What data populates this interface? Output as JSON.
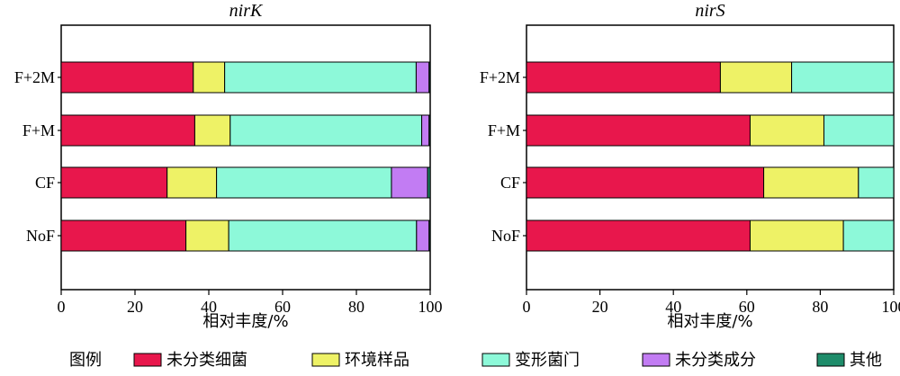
{
  "legend": {
    "title": "图例",
    "items": [
      {
        "name": "未分类细菌",
        "color": "#E8174C"
      },
      {
        "name": "环境样品",
        "color": "#EEF266"
      },
      {
        "name": "变形菌门",
        "color": "#8DF9D9"
      },
      {
        "name": "未分类成分",
        "color": "#C27CF3"
      },
      {
        "name": "其他",
        "color": "#1E8C6A"
      }
    ]
  },
  "chart_data": [
    {
      "type": "bar",
      "orientation": "horizontal",
      "stacked": true,
      "title": "nirK",
      "xlabel": "相对丰度/%",
      "ylabel": "",
      "xlim": [
        0,
        100
      ],
      "xticks": [
        "0",
        "20",
        "40",
        "60",
        "80",
        "100"
      ],
      "categories": [
        "F+2M",
        "F+M",
        "CF",
        "NoF"
      ],
      "series": [
        {
          "name": "未分类细菌",
          "values": [
            35.8,
            36.2,
            28.7,
            33.8
          ]
        },
        {
          "name": "环境样品",
          "values": [
            8.5,
            9.6,
            13.4,
            11.6
          ]
        },
        {
          "name": "变形菌门",
          "values": [
            51.9,
            51.9,
            47.4,
            50.9
          ]
        },
        {
          "name": "未分类成分",
          "values": [
            3.5,
            2.0,
            9.8,
            3.4
          ]
        },
        {
          "name": "其他",
          "values": [
            0.3,
            0.3,
            0.7,
            0.3
          ]
        }
      ]
    },
    {
      "type": "bar",
      "orientation": "horizontal",
      "stacked": true,
      "title": "nirS",
      "xlabel": "相对丰度/%",
      "ylabel": "",
      "xlim": [
        0,
        100
      ],
      "xticks": [
        "0",
        "20",
        "40",
        "60",
        "80",
        "100"
      ],
      "categories": [
        "F+2M",
        "F+M",
        "CF",
        "NoF"
      ],
      "series": [
        {
          "name": "未分类细菌",
          "values": [
            52.8,
            60.9,
            64.6,
            60.9
          ]
        },
        {
          "name": "环境样品",
          "values": [
            19.4,
            20.1,
            25.8,
            25.4
          ]
        },
        {
          "name": "变形菌门",
          "values": [
            27.8,
            19.0,
            9.6,
            13.7
          ]
        },
        {
          "name": "未分类成分",
          "values": [
            0,
            0,
            0,
            0
          ]
        },
        {
          "name": "其他",
          "values": [
            0,
            0,
            0,
            0
          ]
        }
      ]
    }
  ]
}
